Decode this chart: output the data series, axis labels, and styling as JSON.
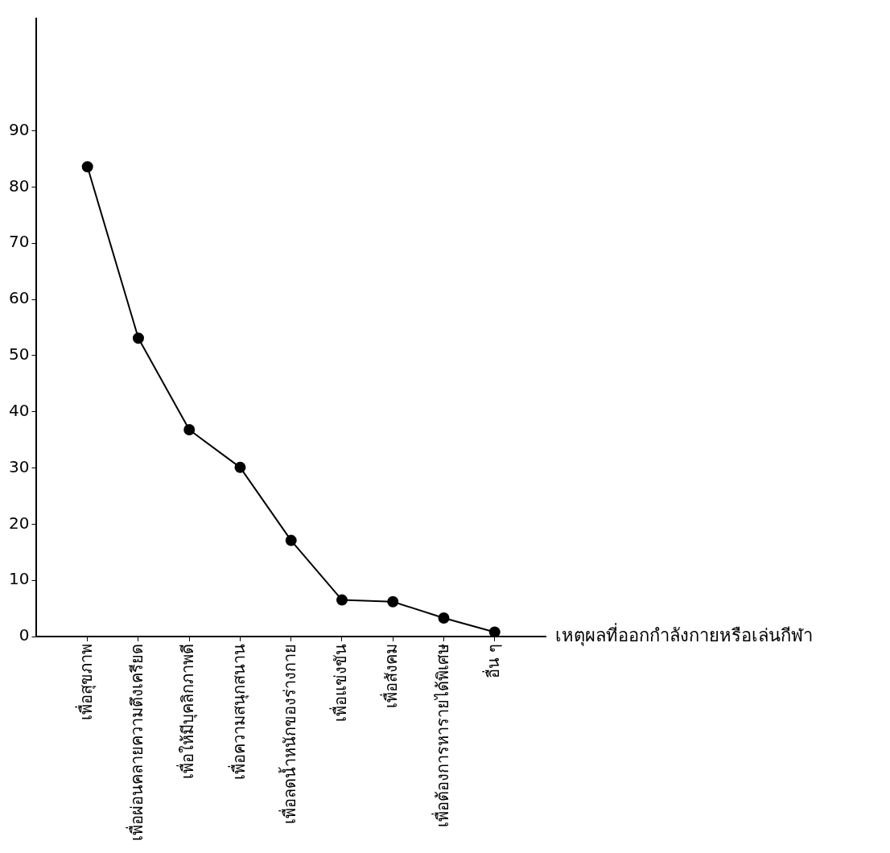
{
  "chart_data": {
    "type": "line",
    "xlabel": "เหตุผลที่ออกกำลังกายหรือเล่นกีฬา",
    "categories": [
      "เพื่อสุขภาพ",
      "เพื่อผ่อนคลายความตึงเครียด",
      "เพื่อให้มีบุคลิกภาพดี",
      "เพื่อความสนุกสนาน",
      "เพื่อลดน้ำหนักของร่างกาย",
      "เพื่อแข่งขัน",
      "เพื่อสังคม",
      "เพื่อต้องการหารายได้พิเศษ",
      "อื่น ๆ"
    ],
    "series": [
      {
        "color": "#000000",
        "values": [
          83.6,
          53.1,
          36.8,
          30.1,
          17.1,
          6.5,
          6.2,
          3.3,
          0.8
        ]
      }
    ],
    "ylim": [
      0,
      110
    ],
    "yticks": [
      0,
      10,
      20,
      30,
      40,
      50,
      60,
      70,
      80,
      90
    ],
    "grid": false,
    "legend": false,
    "marker": "circle",
    "line_style": "solid"
  }
}
